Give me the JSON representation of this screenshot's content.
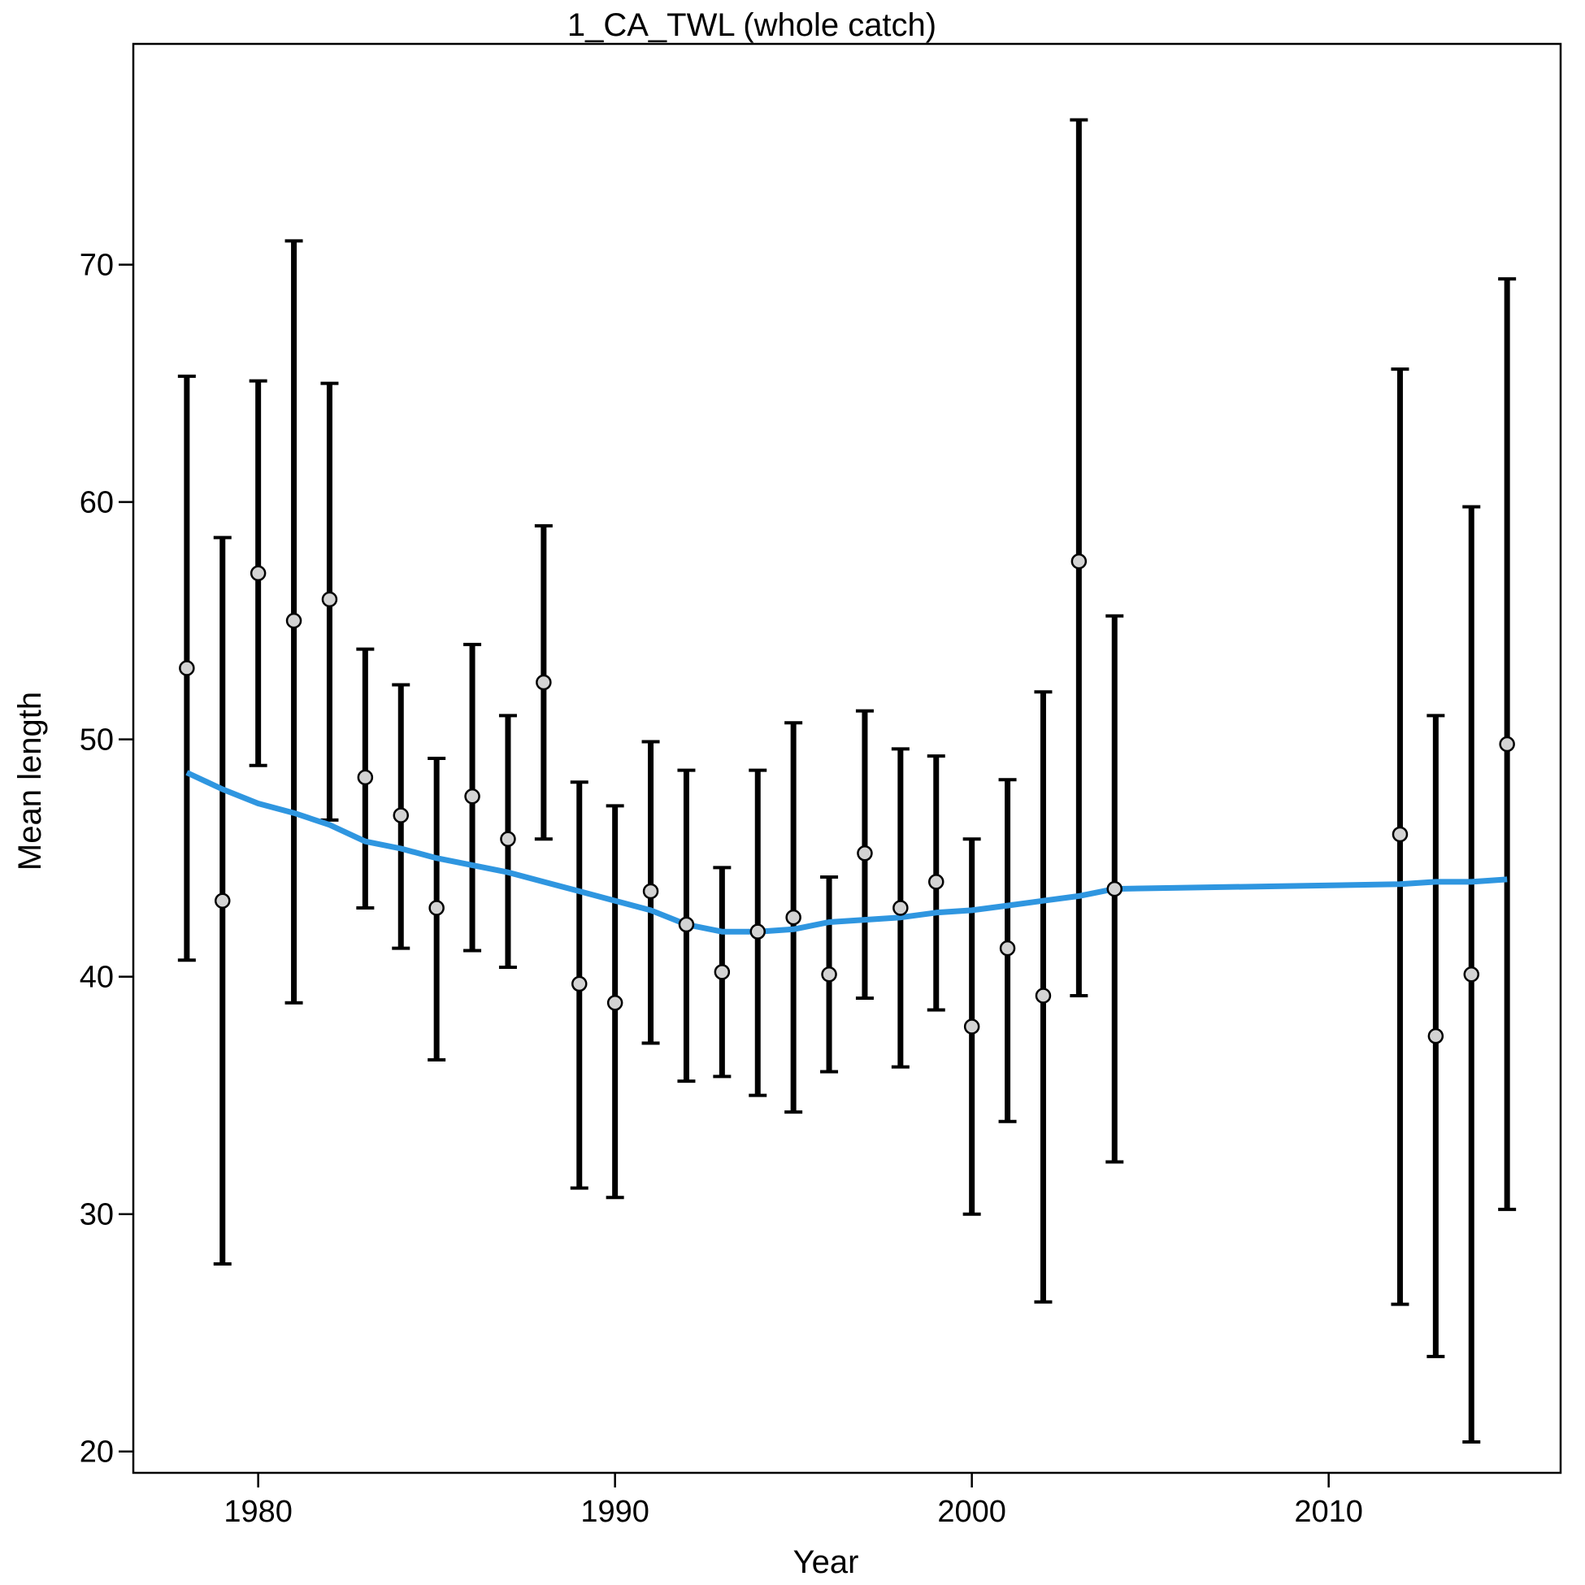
{
  "chart_data": {
    "type": "scatter",
    "title": "1_CA_TWL (whole catch)",
    "xlabel": "Year",
    "ylabel": "Mean length",
    "xlim": [
      1976.5,
      2016.5
    ],
    "ylim": [
      19.1,
      79.3
    ],
    "x_ticks": [
      1980,
      1990,
      2000,
      2010
    ],
    "y_ticks": [
      20,
      30,
      40,
      50,
      60,
      70
    ],
    "grid": false,
    "legend": "none",
    "colors": {
      "errorbar": "#000000",
      "point_fill": "#d3d3d3",
      "point_stroke": "#000000",
      "trend_line": "#2f96e0"
    },
    "series": [
      {
        "kind": "observed-with-intervals",
        "x": [
          1978,
          1979,
          1980,
          1981,
          1982,
          1983,
          1984,
          1985,
          1986,
          1987,
          1988,
          1989,
          1990,
          1991,
          1992,
          1993,
          1994,
          1995,
          1996,
          1997,
          1998,
          1999,
          2000,
          2001,
          2002,
          2003,
          2004,
          2012,
          2013,
          2014,
          2015
        ],
        "y": [
          53.0,
          43.2,
          57.0,
          55.0,
          55.9,
          48.4,
          46.8,
          42.9,
          47.6,
          45.8,
          52.4,
          39.7,
          38.9,
          43.6,
          42.2,
          40.2,
          41.9,
          42.5,
          40.1,
          45.2,
          42.9,
          44.0,
          37.9,
          41.2,
          39.2,
          57.5,
          43.7,
          46.0,
          37.5,
          40.1,
          49.8
        ],
        "lower": [
          40.7,
          27.9,
          48.9,
          38.9,
          46.6,
          42.9,
          41.2,
          36.5,
          41.1,
          40.4,
          45.8,
          31.1,
          30.7,
          37.2,
          35.6,
          35.8,
          35.0,
          34.3,
          36.0,
          39.1,
          36.2,
          38.6,
          30.0,
          33.9,
          26.3,
          39.2,
          32.2,
          26.2,
          24.0,
          20.4,
          30.2
        ],
        "upper": [
          65.3,
          58.5,
          65.1,
          71.0,
          65.0,
          53.8,
          52.3,
          49.2,
          54.0,
          51.0,
          59.0,
          48.2,
          47.2,
          49.9,
          48.7,
          44.6,
          48.7,
          50.7,
          44.2,
          51.2,
          49.6,
          49.3,
          45.8,
          48.3,
          52.0,
          76.1,
          55.2,
          65.6,
          51.0,
          59.8,
          69.4
        ]
      },
      {
        "kind": "expected-line",
        "x": [
          1978,
          1979,
          1980,
          1981,
          1982,
          1983,
          1984,
          1985,
          1986,
          1987,
          1988,
          1989,
          1990,
          1991,
          1992,
          1993,
          1994,
          1995,
          1996,
          1997,
          1998,
          1999,
          2000,
          2001,
          2002,
          2003,
          2004,
          2012,
          2013,
          2014,
          2015
        ],
        "y": [
          48.6,
          47.9,
          47.3,
          46.9,
          46.4,
          45.7,
          45.4,
          45.0,
          44.7,
          44.4,
          44.0,
          43.6,
          43.2,
          42.8,
          42.2,
          41.9,
          41.9,
          42.0,
          42.3,
          42.4,
          42.5,
          42.7,
          42.8,
          43.0,
          43.2,
          43.4,
          43.7,
          43.9,
          44.0,
          44.0,
          44.1
        ]
      }
    ]
  }
}
